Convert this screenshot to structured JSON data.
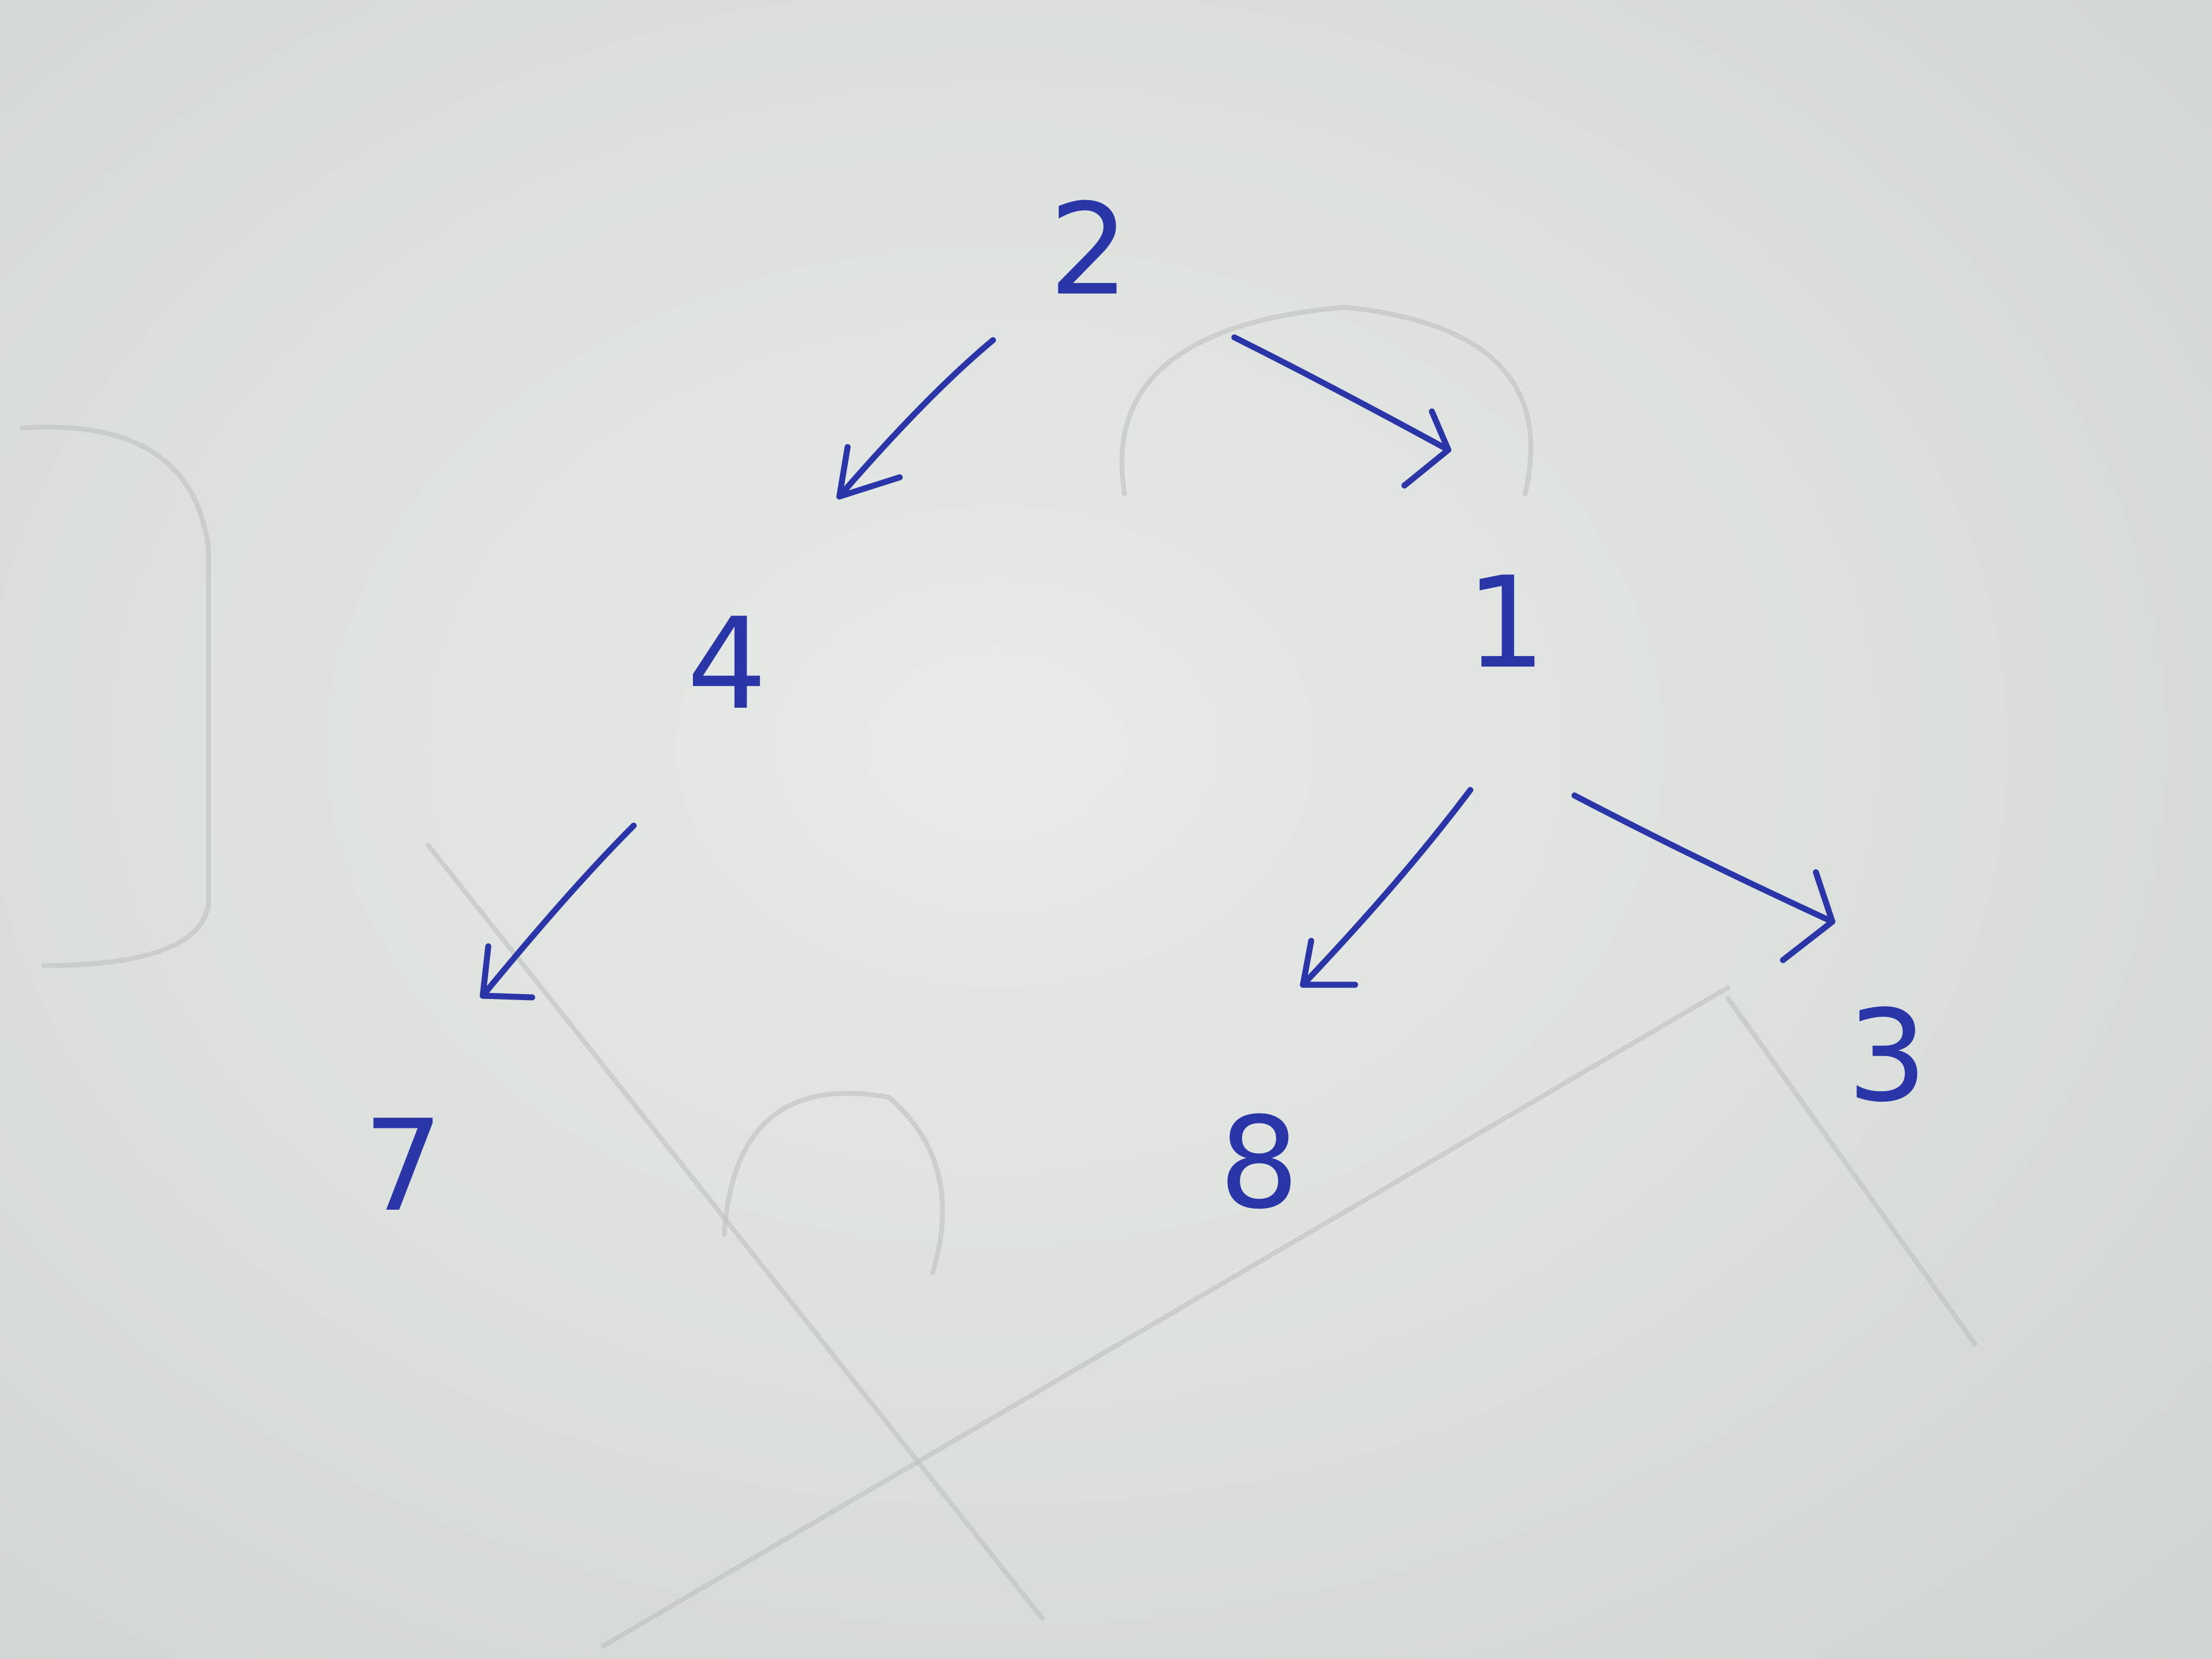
{
  "background": {
    "paper_color": "#dde2df",
    "ink_color": "#2a35a8"
  },
  "tree": {
    "nodes": [
      {
        "id": "root",
        "label": "2"
      },
      {
        "id": "left",
        "label": "4"
      },
      {
        "id": "right",
        "label": "1"
      },
      {
        "id": "left-left",
        "label": "7"
      },
      {
        "id": "right-left",
        "label": "8"
      },
      {
        "id": "right-right",
        "label": "3"
      }
    ],
    "edges": [
      {
        "from": "root",
        "to": "left"
      },
      {
        "from": "root",
        "to": "right"
      },
      {
        "from": "left",
        "to": "left-left"
      },
      {
        "from": "right",
        "to": "right-left"
      },
      {
        "from": "right",
        "to": "right-right"
      }
    ]
  }
}
